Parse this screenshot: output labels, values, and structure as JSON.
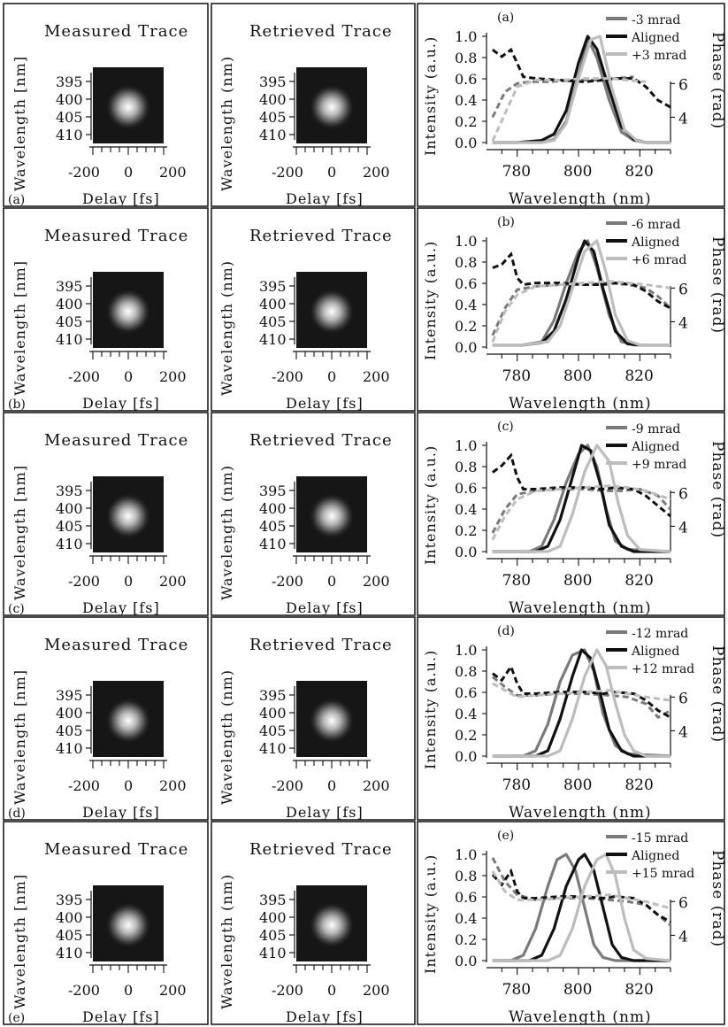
{
  "figure": {
    "measured_title": "Measured Trace",
    "retrieved_title": "Retrieved Trace",
    "measured_ylabels": [
      "Wavelength [nm]",
      "Wavelength [nm]",
      "Wavelength [nm]",
      "Wavelength [nm]",
      "Wavelength [nm]"
    ],
    "retrieved_ylabel": "Wavelength (nm)",
    "trace_xlabel": "Delay [fs]",
    "trace_xticks": [
      "-200",
      "0",
      "200"
    ],
    "trace_yticks": [
      "395",
      "400",
      "405",
      "410"
    ],
    "spec_ylabel_left": "Intensity (a.u.)",
    "spec_ylabel_right": "Phase (rad)",
    "spec_xlabel": "Wavelength (nm)",
    "spec_xticks": [
      "780",
      "800",
      "820"
    ],
    "spec_yticks_left": [
      "0.0",
      "0.2",
      "0.4",
      "0.6",
      "0.8",
      "1.0"
    ],
    "spec_yticks_right": [
      "4",
      "6"
    ],
    "colors": {
      "minus": "#7a7a7a",
      "aligned": "#111111",
      "plus": "#bdbdbd",
      "trace_bg": "#161616"
    }
  },
  "chart_data": [
    {
      "panel": "(a)",
      "type": "line",
      "xlim": [
        770,
        830
      ],
      "ylim": [
        0,
        1.0
      ],
      "phase_ylim": [
        2.5,
        8.8
      ],
      "series": [
        {
          "name": "-3 mrad",
          "role": "minus",
          "x": [
            772,
            780,
            788,
            792,
            796,
            800,
            803,
            806,
            810,
            814,
            818,
            822,
            830
          ],
          "y": [
            0,
            0,
            0,
            0.03,
            0.2,
            0.62,
            0.98,
            0.8,
            0.4,
            0.1,
            0.02,
            0,
            0
          ],
          "phase_x": [
            772,
            776,
            780,
            784,
            790,
            798,
            806,
            812,
            818
          ],
          "phase": [
            4.0,
            5.5,
            6.0,
            6.1,
            6.1,
            6.2,
            6.2,
            6.3,
            6.4
          ]
        },
        {
          "name": "Aligned",
          "role": "aligned",
          "x": [
            772,
            780,
            788,
            792,
            796,
            800,
            803,
            806,
            810,
            814,
            818,
            822,
            830
          ],
          "y": [
            0,
            0,
            0.02,
            0.08,
            0.3,
            0.75,
            1.0,
            0.88,
            0.5,
            0.15,
            0.03,
            0,
            0
          ],
          "phase_x": [
            772,
            775,
            778,
            780,
            782,
            786,
            794,
            802,
            808,
            812,
            818,
            822,
            826,
            830
          ],
          "phase": [
            8.0,
            7.6,
            8.0,
            7.2,
            6.4,
            6.3,
            6.2,
            6.1,
            6.2,
            6.3,
            6.3,
            5.8,
            5.0,
            4.6
          ]
        },
        {
          "name": "+3 mrad",
          "role": "plus",
          "x": [
            772,
            780,
            788,
            792,
            796,
            800,
            804,
            807,
            811,
            815,
            819,
            822,
            830
          ],
          "y": [
            0,
            0,
            0,
            0.02,
            0.18,
            0.6,
            0.97,
            1.0,
            0.5,
            0.12,
            0.02,
            0,
            0
          ],
          "phase_x": [
            772,
            776,
            780,
            786,
            794,
            802,
            810,
            816,
            822
          ],
          "phase": [
            2.6,
            4.2,
            5.8,
            6.2,
            6.2,
            6.3,
            6.3,
            6.2,
            6.1
          ]
        }
      ]
    },
    {
      "panel": "(b)",
      "type": "line",
      "xlim": [
        770,
        830
      ],
      "ylim": [
        0,
        1.0
      ],
      "phase_ylim": [
        2.5,
        8.8
      ],
      "series": [
        {
          "name": "-6 mrad",
          "role": "minus",
          "x": [
            772,
            782,
            788,
            792,
            796,
            800,
            803,
            806,
            810,
            814,
            818,
            830
          ],
          "y": [
            0.02,
            0.02,
            0.05,
            0.25,
            0.6,
            0.9,
            1.0,
            0.75,
            0.3,
            0.05,
            0.02,
            0.02
          ],
          "phase_x": [
            772,
            776,
            780,
            786,
            794,
            802,
            810,
            816,
            822,
            826,
            830
          ],
          "phase": [
            3.2,
            4.8,
            5.9,
            6.1,
            6.2,
            6.2,
            6.3,
            6.2,
            6.0,
            5.5,
            4.8
          ]
        },
        {
          "name": "Aligned",
          "role": "aligned",
          "x": [
            772,
            782,
            788,
            792,
            796,
            800,
            802,
            805,
            808,
            812,
            816,
            820,
            830
          ],
          "y": [
            0.02,
            0.02,
            0.04,
            0.15,
            0.45,
            0.85,
            1.0,
            0.9,
            0.55,
            0.15,
            0.03,
            0.02,
            0.02
          ],
          "phase_x": [
            772,
            775,
            778,
            780,
            782,
            786,
            794,
            802,
            808,
            812,
            818,
            822,
            826,
            830
          ],
          "phase": [
            7.2,
            7.4,
            8.0,
            6.6,
            6.2,
            6.3,
            6.3,
            6.2,
            6.2,
            6.3,
            6.2,
            5.8,
            5.2,
            4.8
          ]
        },
        {
          "name": "+6 mrad",
          "role": "plus",
          "x": [
            772,
            782,
            790,
            794,
            798,
            802,
            806,
            809,
            812,
            816,
            820,
            830
          ],
          "y": [
            0.02,
            0.02,
            0.05,
            0.2,
            0.55,
            0.9,
            1.0,
            0.7,
            0.3,
            0.06,
            0.02,
            0.02
          ],
          "phase_x": [
            772,
            776,
            780,
            786,
            794,
            802,
            810,
            816,
            822,
            830
          ],
          "phase": [
            2.8,
            4.6,
            5.6,
            6.1,
            6.2,
            6.3,
            6.4,
            6.3,
            6.2,
            6.0
          ]
        }
      ]
    },
    {
      "panel": "(c)",
      "type": "line",
      "xlim": [
        770,
        830
      ],
      "ylim": [
        0,
        1.0
      ],
      "phase_ylim": [
        2.5,
        8.8
      ],
      "series": [
        {
          "name": "-9 mrad",
          "role": "minus",
          "x": [
            772,
            784,
            788,
            792,
            796,
            800,
            803,
            806,
            809,
            812,
            816,
            830
          ],
          "y": [
            0,
            0,
            0.05,
            0.3,
            0.65,
            0.92,
            1.0,
            0.8,
            0.4,
            0.1,
            0.02,
            0
          ],
          "phase_x": [
            772,
            776,
            780,
            786,
            794,
            802,
            808,
            814,
            820,
            826,
            830
          ],
          "phase": [
            3.6,
            5.0,
            5.9,
            6.1,
            6.2,
            6.2,
            6.1,
            6.1,
            6.2,
            5.8,
            5.0
          ]
        },
        {
          "name": "Aligned",
          "role": "aligned",
          "x": [
            772,
            786,
            790,
            794,
            798,
            801,
            804,
            807,
            810,
            814,
            818,
            830
          ],
          "y": [
            0,
            0,
            0.05,
            0.3,
            0.7,
            1.0,
            0.95,
            0.65,
            0.25,
            0.05,
            0,
            0
          ],
          "phase_x": [
            772,
            775,
            778,
            780,
            782,
            786,
            794,
            802,
            808,
            812,
            818,
            822,
            826,
            830
          ],
          "phase": [
            7.2,
            7.6,
            8.2,
            6.9,
            6.2,
            6.2,
            6.3,
            6.3,
            6.2,
            6.3,
            6.2,
            5.8,
            5.2,
            4.6
          ]
        },
        {
          "name": "+9 mrad",
          "role": "plus",
          "x": [
            772,
            790,
            794,
            798,
            802,
            806,
            810,
            813,
            816,
            820,
            830
          ],
          "y": [
            0,
            0,
            0.05,
            0.35,
            0.75,
            1.0,
            0.85,
            0.45,
            0.15,
            0.02,
            0
          ],
          "phase_x": [
            772,
            776,
            780,
            786,
            794,
            802,
            810,
            816,
            822,
            830
          ],
          "phase": [
            3.2,
            4.6,
            5.6,
            6.1,
            6.2,
            6.3,
            6.4,
            6.3,
            6.1,
            5.6
          ]
        }
      ]
    },
    {
      "panel": "(d)",
      "type": "line",
      "xlim": [
        770,
        830
      ],
      "ylim": [
        0,
        1.0
      ],
      "phase_ylim": [
        2.5,
        8.8
      ],
      "series": [
        {
          "name": "-12 mrad",
          "role": "minus",
          "x": [
            772,
            782,
            786,
            790,
            794,
            798,
            802,
            805,
            808,
            812,
            816,
            830
          ],
          "y": [
            0,
            0,
            0.05,
            0.3,
            0.7,
            0.95,
            1.0,
            0.8,
            0.4,
            0.1,
            0.02,
            0
          ],
          "phase_x": [
            772,
            776,
            780,
            786,
            794,
            802,
            810,
            816,
            822,
            826,
            830
          ],
          "phase": [
            7.2,
            6.6,
            6.1,
            6.1,
            6.2,
            6.2,
            6.1,
            6.0,
            5.6,
            4.8,
            5.2
          ]
        },
        {
          "name": "Aligned",
          "role": "aligned",
          "x": [
            772,
            786,
            790,
            794,
            798,
            801,
            804,
            807,
            810,
            814,
            818,
            830
          ],
          "y": [
            0,
            0,
            0.05,
            0.35,
            0.75,
            1.0,
            0.92,
            0.6,
            0.25,
            0.05,
            0,
            0
          ],
          "phase_x": [
            772,
            775,
            778,
            780,
            782,
            786,
            794,
            802,
            808,
            812,
            818,
            822,
            826,
            830
          ],
          "phase": [
            7.4,
            7.0,
            7.8,
            6.8,
            6.2,
            6.2,
            6.3,
            6.3,
            6.2,
            6.3,
            6.2,
            5.8,
            5.2,
            4.8
          ]
        },
        {
          "name": "+12 mrad",
          "role": "plus",
          "x": [
            772,
            790,
            794,
            798,
            802,
            806,
            809,
            812,
            815,
            818,
            822,
            830
          ],
          "y": [
            0,
            0,
            0.05,
            0.35,
            0.75,
            1.0,
            0.85,
            0.5,
            0.2,
            0.05,
            0,
            0
          ],
          "phase_x": [
            772,
            776,
            780,
            786,
            794,
            802,
            810,
            816,
            822,
            830
          ],
          "phase": [
            6.8,
            6.4,
            6.0,
            6.1,
            6.2,
            6.3,
            6.4,
            6.2,
            6.0,
            5.8
          ]
        }
      ]
    },
    {
      "panel": "(e)",
      "type": "line",
      "xlim": [
        770,
        830
      ],
      "ylim": [
        0,
        1.0
      ],
      "phase_ylim": [
        2.5,
        8.8
      ],
      "series": [
        {
          "name": "-15 mrad",
          "role": "minus",
          "x": [
            772,
            778,
            782,
            786,
            790,
            793,
            796,
            799,
            802,
            805,
            808,
            812,
            830
          ],
          "y": [
            0,
            0,
            0.05,
            0.3,
            0.7,
            0.95,
            1.0,
            0.85,
            0.5,
            0.15,
            0.03,
            0,
            0
          ],
          "phase_x": [
            772,
            776,
            780,
            786,
            794,
            802,
            810,
            816,
            822,
            826,
            830
          ],
          "phase": [
            8.6,
            7.2,
            6.4,
            6.1,
            6.2,
            6.2,
            6.1,
            6.0,
            5.8,
            5.2,
            4.6
          ]
        },
        {
          "name": "Aligned",
          "role": "aligned",
          "x": [
            772,
            784,
            788,
            792,
            796,
            800,
            802,
            805,
            808,
            811,
            814,
            818,
            830
          ],
          "y": [
            0,
            0,
            0.05,
            0.3,
            0.7,
            0.95,
            1.0,
            0.85,
            0.5,
            0.15,
            0.03,
            0,
            0
          ],
          "phase_x": [
            772,
            775,
            778,
            780,
            782,
            786,
            794,
            802,
            808,
            812,
            818,
            822,
            826,
            830
          ],
          "phase": [
            7.6,
            7.0,
            7.8,
            6.6,
            6.2,
            6.2,
            6.3,
            6.3,
            6.2,
            6.3,
            6.2,
            5.8,
            5.2,
            4.8
          ]
        },
        {
          "name": "+15 mrad",
          "role": "plus",
          "x": [
            772,
            790,
            794,
            798,
            802,
            806,
            809,
            812,
            815,
            818,
            822,
            830
          ],
          "y": [
            0,
            0,
            0.05,
            0.3,
            0.7,
            0.95,
            1.0,
            0.8,
            0.4,
            0.1,
            0.02,
            0
          ],
          "phase_x": [
            772,
            776,
            780,
            786,
            794,
            802,
            810,
            816,
            822,
            830
          ],
          "phase": [
            7.8,
            6.6,
            6.1,
            6.1,
            6.2,
            6.3,
            6.4,
            6.2,
            6.0,
            5.6
          ]
        }
      ]
    }
  ]
}
